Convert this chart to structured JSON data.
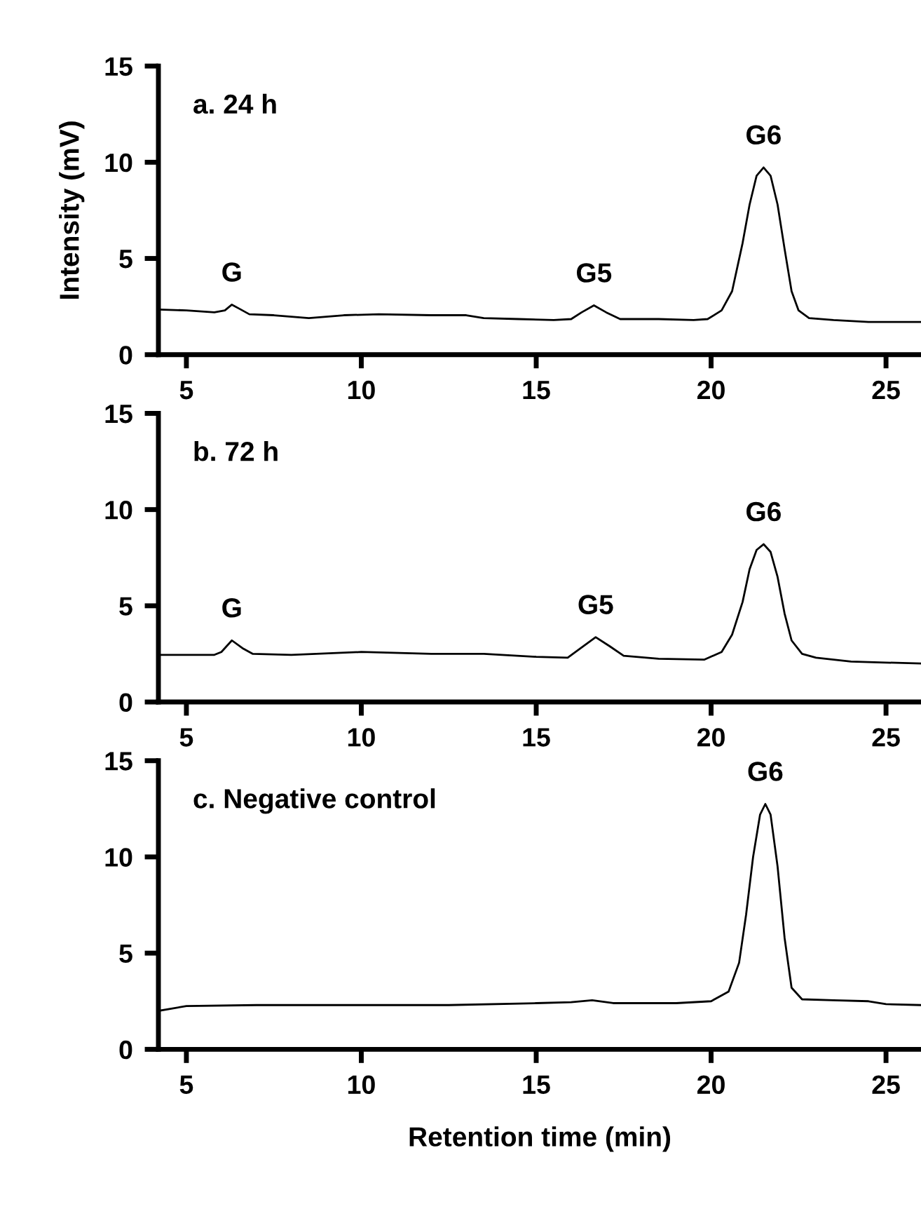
{
  "chart_data": [
    {
      "type": "line",
      "title": "a. 24 h",
      "ylabel": "Intensity (mV)",
      "xlim": [
        4.2,
        26.0
      ],
      "ylim": [
        0,
        15
      ],
      "xticks": [
        5,
        10,
        15,
        20,
        25
      ],
      "yticks": [
        0,
        5,
        10,
        15
      ],
      "grid": false,
      "legend": false,
      "series": [
        {
          "color": "#000000",
          "x": [
            4.2,
            5.0,
            5.8,
            6.1,
            6.3,
            6.5,
            6.8,
            7.5,
            8.5,
            9.5,
            10.5,
            12.0,
            13.0,
            13.5,
            14.5,
            15.5,
            16.0,
            16.3,
            16.65,
            17.0,
            17.4,
            18.5,
            19.5,
            19.9,
            20.3,
            20.6,
            20.9,
            21.1,
            21.3,
            21.5,
            21.7,
            21.9,
            22.1,
            22.3,
            22.5,
            22.8,
            23.5,
            24.5,
            26.0
          ],
          "values": [
            2.35,
            2.3,
            2.2,
            2.3,
            2.6,
            2.4,
            2.1,
            2.05,
            1.9,
            2.05,
            2.1,
            2.05,
            2.05,
            1.9,
            1.85,
            1.8,
            1.85,
            2.2,
            2.56,
            2.2,
            1.85,
            1.85,
            1.8,
            1.85,
            2.3,
            3.3,
            5.8,
            7.8,
            9.3,
            9.73,
            9.3,
            7.8,
            5.5,
            3.3,
            2.3,
            1.9,
            1.8,
            1.7,
            1.7
          ]
        }
      ],
      "annotations": [
        {
          "text": "G",
          "x": 6.3,
          "y": 2.6
        },
        {
          "text": "G5",
          "x": 16.65,
          "y": 2.56
        },
        {
          "text": "G6",
          "x": 21.5,
          "y": 9.73
        }
      ]
    },
    {
      "type": "line",
      "title": "b. 72 h",
      "xlim": [
        4.2,
        26.0
      ],
      "ylim": [
        0,
        15
      ],
      "xticks": [
        5,
        10,
        15,
        20,
        25
      ],
      "yticks": [
        0,
        5,
        10,
        15
      ],
      "grid": false,
      "legend": false,
      "series": [
        {
          "color": "#000000",
          "x": [
            4.2,
            5.0,
            5.8,
            6.0,
            6.3,
            6.6,
            6.9,
            8.0,
            10.0,
            12.0,
            13.5,
            15.0,
            15.9,
            16.2,
            16.7,
            17.1,
            17.5,
            18.5,
            19.8,
            20.3,
            20.6,
            20.9,
            21.1,
            21.3,
            21.5,
            21.7,
            21.9,
            22.1,
            22.3,
            22.6,
            23.0,
            24.0,
            26.0
          ],
          "values": [
            2.45,
            2.45,
            2.45,
            2.6,
            3.2,
            2.8,
            2.5,
            2.45,
            2.6,
            2.5,
            2.5,
            2.35,
            2.3,
            2.7,
            3.37,
            2.9,
            2.4,
            2.25,
            2.2,
            2.6,
            3.5,
            5.2,
            6.9,
            7.9,
            8.2,
            7.8,
            6.5,
            4.6,
            3.2,
            2.5,
            2.3,
            2.1,
            2.0
          ]
        }
      ],
      "annotations": [
        {
          "text": "G",
          "x": 6.3,
          "y": 3.2
        },
        {
          "text": "G5",
          "x": 16.7,
          "y": 3.37
        },
        {
          "text": "G6",
          "x": 21.5,
          "y": 8.2
        }
      ]
    },
    {
      "type": "line",
      "title": "c. Negative control",
      "xlabel": "Retention time (min)",
      "xlim": [
        4.2,
        26.0
      ],
      "ylim": [
        0,
        15
      ],
      "xticks": [
        5,
        10,
        15,
        20,
        25
      ],
      "yticks": [
        0,
        5,
        10,
        15
      ],
      "grid": false,
      "legend": false,
      "series": [
        {
          "color": "#000000",
          "x": [
            4.2,
            5.0,
            7.0,
            10.0,
            12.5,
            15.0,
            16.0,
            16.6,
            17.2,
            19.0,
            20.0,
            20.5,
            20.8,
            21.0,
            21.2,
            21.4,
            21.55,
            21.7,
            21.9,
            22.1,
            22.3,
            22.6,
            23.5,
            24.5,
            25.0,
            26.0
          ],
          "values": [
            2.0,
            2.25,
            2.3,
            2.3,
            2.3,
            2.4,
            2.45,
            2.55,
            2.4,
            2.4,
            2.5,
            3.0,
            4.5,
            7.0,
            10.0,
            12.2,
            12.75,
            12.2,
            9.5,
            5.8,
            3.2,
            2.6,
            2.55,
            2.5,
            2.35,
            2.3
          ]
        }
      ],
      "annotations": [
        {
          "text": "G6",
          "x": 21.55,
          "y": 12.75
        }
      ]
    }
  ]
}
